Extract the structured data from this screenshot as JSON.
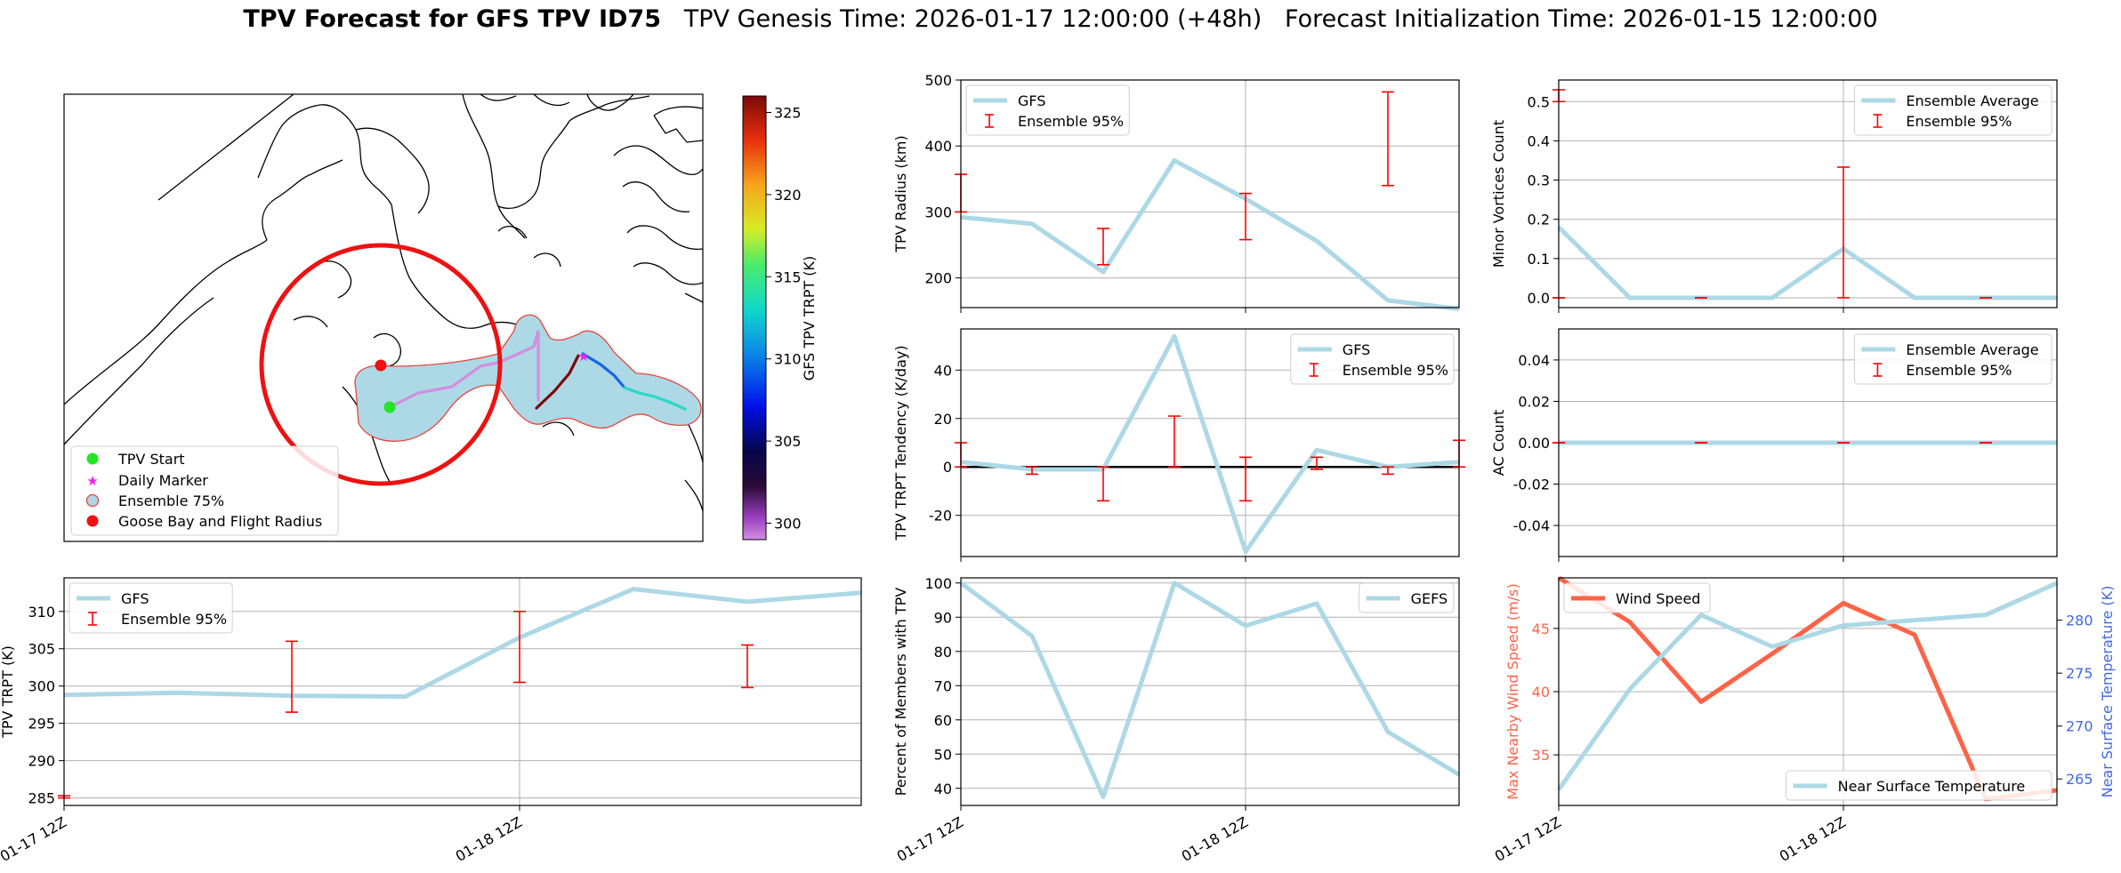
{
  "header": {
    "title_bold": "TPV Forecast for GFS TPV ID75",
    "title_rest": "   TPV Genesis Time: 2026-01-17 12:00:00 (+48h)   Forecast Initialization Time: 2026-01-15 12:00:00"
  },
  "map": {
    "legend": [
      "TPV Start",
      "Daily Marker",
      "Ensemble 75%",
      "Goose Bay and Flight Radius"
    ],
    "colorbar_label": "GFS TPV TRPT (K)",
    "colorbar_ticks": [
      300,
      305,
      310,
      315,
      320,
      325
    ],
    "colorbar_range": [
      299,
      326
    ]
  },
  "colors": {
    "gfs_line": "#add8e6",
    "errorbar": "#ff0000",
    "wind": "#ff6347",
    "temp_axis": "#4169e1",
    "envelope_edge": "#e8453c",
    "marker_start": "#22e622",
    "marker_daily": "#ee22ee",
    "goose_bay": "#ee1111"
  },
  "x_tick_labels": [
    "01-17 12Z",
    "01-18 12Z"
  ],
  "chart_data": [
    {
      "id": "radius",
      "type": "line",
      "ylabel": "TPV Radius (km)",
      "xlabel": "",
      "ylim": [
        155,
        500
      ],
      "yticks": [
        200,
        300,
        400,
        500
      ],
      "legend": [
        "GFS",
        "Ensemble 95%"
      ],
      "legend_loc": "upper-left",
      "x": [
        0,
        0.25,
        0.5,
        0.75,
        1,
        1.25,
        1.5,
        1.75
      ],
      "series": [
        {
          "name": "GFS",
          "values": [
            292,
            282,
            209,
            378,
            320,
            256,
            166,
            153
          ]
        }
      ],
      "errorbars": [
        {
          "x": 0,
          "low": 300,
          "high": 357
        },
        {
          "x": 0.5,
          "low": 220,
          "high": 275
        },
        {
          "x": 1,
          "low": 258,
          "high": 328
        },
        {
          "x": 1.5,
          "low": 340,
          "high": 482
        }
      ]
    },
    {
      "id": "minor",
      "type": "line",
      "ylabel": "Minor Vortices Count",
      "xlabel": "",
      "ylim": [
        -0.025,
        0.555
      ],
      "yticks": [
        0.0,
        0.1,
        0.2,
        0.3,
        0.4,
        0.5
      ],
      "legend": [
        "Ensemble Average",
        "Ensemble 95%"
      ],
      "legend_loc": "upper-right",
      "x": [
        0,
        0.25,
        0.5,
        0.75,
        1,
        1.25,
        1.5,
        1.75
      ],
      "series": [
        {
          "name": "Ensemble Average",
          "values": [
            0.18,
            0,
            0,
            0,
            0.125,
            0,
            0,
            0
          ]
        }
      ],
      "errorbars": [
        {
          "x": 0,
          "low": 0.5,
          "high": 0.53
        },
        {
          "x": 0,
          "low": 0,
          "high": 0
        },
        {
          "x": 0.5,
          "low": 0,
          "high": 0
        },
        {
          "x": 1,
          "low": 0,
          "high": 0.333
        },
        {
          "x": 1.5,
          "low": 0,
          "high": 0
        }
      ]
    },
    {
      "id": "tendency",
      "type": "line",
      "ylabel": "TPV TRPT Tendency (K/day)",
      "xlabel": "",
      "ylim": [
        -37,
        57
      ],
      "yticks": [
        -20,
        0,
        20,
        40
      ],
      "legend": [
        "GFS",
        "Ensemble 95%"
      ],
      "legend_loc": "upper-right",
      "x": [
        0,
        0.25,
        0.5,
        0.75,
        1,
        1.25,
        1.5,
        1.75
      ],
      "series": [
        {
          "name": "GFS",
          "values": [
            2,
            -1,
            -1,
            54,
            -35,
            7,
            0,
            2
          ]
        }
      ],
      "errorbars": [
        {
          "x": 0,
          "low": 0,
          "high": 10
        },
        {
          "x": 0.25,
          "low": -3,
          "high": 0
        },
        {
          "x": 0.5,
          "low": -14,
          "high": 0
        },
        {
          "x": 0.75,
          "low": 0,
          "high": 21
        },
        {
          "x": 1,
          "low": -14,
          "high": 4
        },
        {
          "x": 1.25,
          "low": -1,
          "high": 4
        },
        {
          "x": 1.5,
          "low": -3,
          "high": 0
        },
        {
          "x": 1.75,
          "low": 0,
          "high": 11
        }
      ],
      "zero_line": true
    },
    {
      "id": "ac",
      "type": "line",
      "ylabel": "AC Count",
      "xlabel": "",
      "ylim": [
        -0.055,
        0.055
      ],
      "yticks": [
        -0.04,
        -0.02,
        0.0,
        0.02,
        0.04
      ],
      "legend": [
        "Ensemble Average",
        "Ensemble 95%"
      ],
      "legend_loc": "upper-right",
      "x": [
        0,
        0.25,
        0.5,
        0.75,
        1,
        1.25,
        1.5,
        1.75
      ],
      "series": [
        {
          "name": "Ensemble Average",
          "values": [
            0,
            0,
            0,
            0,
            0,
            0,
            0,
            0
          ]
        }
      ],
      "errorbars": [
        {
          "x": 0,
          "low": 0,
          "high": 0
        },
        {
          "x": 0.5,
          "low": 0,
          "high": 0
        },
        {
          "x": 1,
          "low": 0,
          "high": 0
        },
        {
          "x": 1.5,
          "low": 0,
          "high": 0
        }
      ]
    },
    {
      "id": "trpt",
      "type": "line",
      "ylabel": "TPV TRPT (K)",
      "xlabel": "",
      "ylim": [
        284,
        314.5
      ],
      "yticks": [
        285,
        290,
        295,
        300,
        305,
        310
      ],
      "legend": [
        "GFS",
        "Ensemble 95%"
      ],
      "legend_loc": "upper-left",
      "x": [
        0,
        0.25,
        0.5,
        0.75,
        1,
        1.25,
        1.5,
        1.75
      ],
      "series": [
        {
          "name": "GFS",
          "values": [
            298.8,
            299.1,
            298.7,
            298.6,
            306.5,
            313,
            311.3,
            312.5
          ]
        }
      ],
      "errorbars": [
        {
          "x": 0,
          "low": 285,
          "high": 285.3
        },
        {
          "x": 0.5,
          "low": 296.5,
          "high": 306
        },
        {
          "x": 1,
          "low": 300.5,
          "high": 310
        },
        {
          "x": 1.5,
          "low": 299.8,
          "high": 305.5
        }
      ]
    },
    {
      "id": "members",
      "type": "line",
      "ylabel": "Percent of Members with TPV",
      "xlabel": "",
      "ylim": [
        35,
        101.5
      ],
      "yticks": [
        40,
        50,
        60,
        70,
        80,
        90,
        100
      ],
      "legend": [
        "GEFS"
      ],
      "legend_loc": "upper-right",
      "x": [
        0,
        0.25,
        0.5,
        0.75,
        1,
        1.25,
        1.5,
        1.75
      ],
      "series": [
        {
          "name": "GEFS",
          "values": [
            100,
            84.5,
            37.5,
            100,
            87.5,
            94,
            56.5,
            44
          ]
        }
      ]
    },
    {
      "id": "wind_temp",
      "type": "line",
      "xlabel": "",
      "ylabel": "Max Nearby Wind Speed (m/s)",
      "ylabel_right": "Near Surface Temperature (K)",
      "ylim": [
        31,
        49
      ],
      "yticks": [
        35,
        40,
        45
      ],
      "ylim_right": [
        262.5,
        284
      ],
      "yticks_right": [
        265,
        270,
        275,
        280
      ],
      "legend": [
        "Wind Speed"
      ],
      "legend_loc": "upper-left",
      "legend_right": [
        "Near Surface Temperature"
      ],
      "legend_right_loc": "lower-right",
      "x": [
        0,
        0.25,
        0.5,
        0.75,
        1,
        1.25,
        1.5,
        1.75
      ],
      "series": [
        {
          "name": "Wind Speed",
          "axis": "left",
          "values": [
            49,
            45.5,
            39.2,
            43,
            47,
            44.5,
            31.5,
            32.2
          ]
        },
        {
          "name": "Near Surface Temperature",
          "axis": "right",
          "values": [
            264,
            273.5,
            280.5,
            277.5,
            279.5,
            280,
            280.5,
            283.5
          ]
        }
      ]
    }
  ]
}
